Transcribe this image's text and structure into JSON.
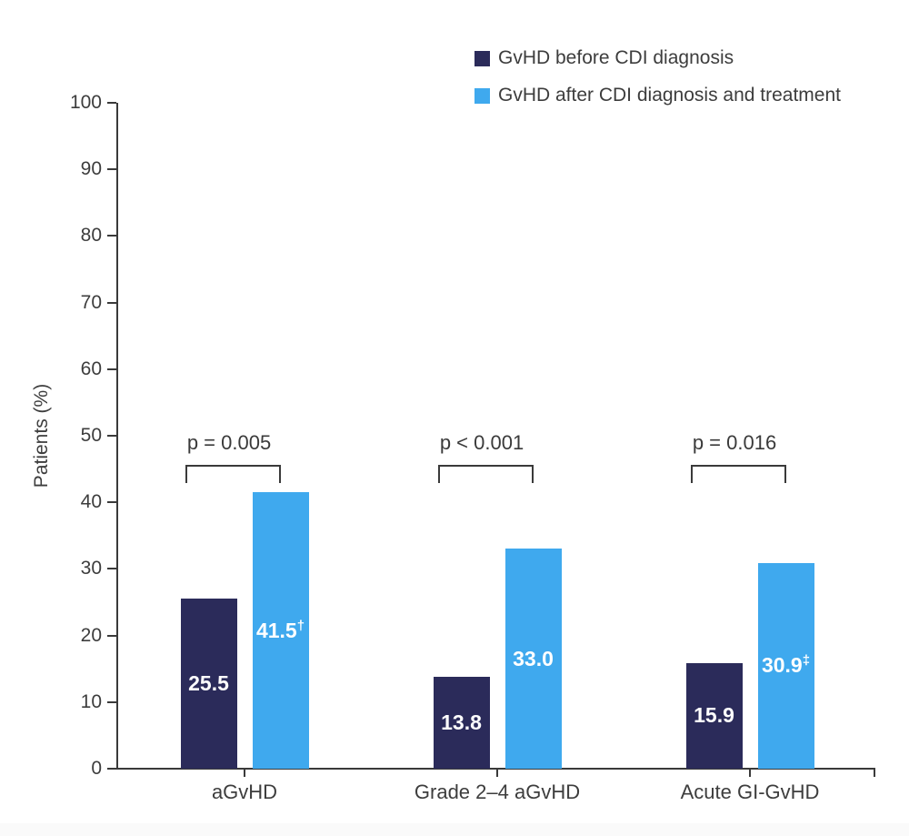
{
  "colors": {
    "series_before": "#2b2b5a",
    "series_after": "#3fa9ee",
    "axis": "#3a3a3a",
    "text": "#3d3d3d",
    "background": "#ffffff"
  },
  "chart_data": {
    "type": "bar",
    "title": "",
    "xlabel": "",
    "ylabel": "Patients (%)",
    "ylim": [
      0,
      100
    ],
    "ytick_step": 10,
    "grid": false,
    "legend_position": "top-right",
    "categories": [
      "aGvHD",
      "Grade 2–4 aGvHD",
      "Acute GI-GvHD"
    ],
    "series": [
      {
        "name": "GvHD before CDI diagnosis",
        "color": "#2b2b5a",
        "values": [
          25.5,
          13.8,
          15.9
        ],
        "value_labels": [
          "25.5",
          "13.8",
          "15.9"
        ],
        "value_sups": [
          "",
          "",
          ""
        ]
      },
      {
        "name": "GvHD after CDI diagnosis and treatment",
        "color": "#3fa9ee",
        "values": [
          41.5,
          33.0,
          30.9
        ],
        "value_labels": [
          "41.5",
          "33.0",
          "30.9"
        ],
        "value_sups": [
          "†",
          "",
          "‡"
        ]
      }
    ],
    "comparisons": [
      {
        "category": "aGvHD",
        "label": "p = 0.005"
      },
      {
        "category": "Grade 2–4 aGvHD",
        "label": "p < 0.001"
      },
      {
        "category": "Acute GI-GvHD",
        "label": "p = 0.016"
      }
    ]
  }
}
